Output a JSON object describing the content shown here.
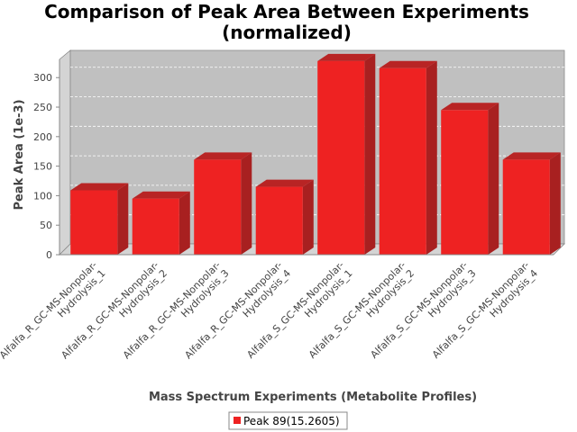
{
  "chart_data": {
    "type": "bar",
    "title": "Comparison of Peak Area Between Experiments (normalized)",
    "title_lines": [
      "Comparison of Peak Area Between Experiments",
      "(normalized)"
    ],
    "xlabel": "Mass Spectrum Experiments (Metabolite Profiles)",
    "ylabel": "Peak Area (1e-3)",
    "ylim": [
      0,
      340
    ],
    "yticks": [
      "0",
      "50",
      "100",
      "150",
      "200",
      "250",
      "300"
    ],
    "grid": true,
    "legend_position": "bottom",
    "categories": [
      "Alfalfa_R_GC-MS-Nonpolar-Hydrolysis_1",
      "Alfalfa_R_GC-MS-Nonpolar-Hydrolysis_2",
      "Alfalfa_R_GC-MS-Nonpolar-Hydrolysis_3",
      "Alfalfa_R_GC-MS-Nonpolar-Hydrolysis_4",
      "Alfalfa_S_GC-MS-Nonpolar-Hydrolysis_1",
      "Alfalfa_S_GC-MS-Nonpolar-Hydrolysis_2",
      "Alfalfa_S_GC-MS-Nonpolar-Hydrolysis_3",
      "Alfalfa_S_GC-MS-Nonpolar-Hydrolysis_4"
    ],
    "category_label_lines": [
      [
        "Alfalfa_R_GC-MS-Nonpolar-",
        "Hydrolysis_1"
      ],
      [
        "Alfalfa_R_GC-MS-Nonpolar-",
        "Hydrolysis_2"
      ],
      [
        "Alfalfa_R_GC-MS-Nonpolar-",
        "Hydrolysis_3"
      ],
      [
        "Alfalfa_R_GC-MS-Nonpolar-",
        "Hydrolysis_4"
      ],
      [
        "Alfalfa_S_GC-MS-Nonpolar-",
        "Hydrolysis_1"
      ],
      [
        "Alfalfa_S_GC-MS-Nonpolar-",
        "Hydrolysis_2"
      ],
      [
        "Alfalfa_S_GC-MS-Nonpolar-",
        "Hydrolysis_3"
      ],
      [
        "Alfalfa_S_GC-MS-Nonpolar-",
        "Hydrolysis_4"
      ]
    ],
    "series": [
      {
        "name": "Peak 89(15.2605)",
        "color": "#ee2222",
        "values": [
          109,
          95,
          161,
          115,
          328,
          316,
          245,
          161
        ]
      }
    ]
  }
}
